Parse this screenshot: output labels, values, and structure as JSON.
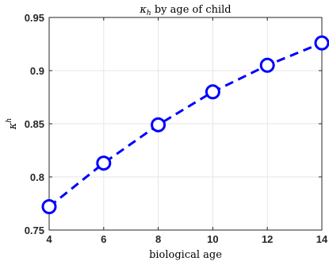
{
  "chart_data": {
    "type": "line",
    "title": {
      "symbol": "κ",
      "subscript": "h",
      "rest": " by age of child"
    },
    "xlabel": "biological age",
    "ylabel": {
      "symbol": "κ",
      "superscript": "h"
    },
    "xlim": [
      4,
      14
    ],
    "ylim": [
      0.75,
      0.95
    ],
    "xticks": [
      4,
      6,
      8,
      10,
      12,
      14
    ],
    "xtick_labels": [
      "4",
      "6",
      "8",
      "10",
      "12",
      "14"
    ],
    "yticks": [
      0.75,
      0.8,
      0.85,
      0.9,
      0.95
    ],
    "ytick_labels": [
      "0.75",
      "0.8",
      "0.85",
      "0.9",
      "0.95"
    ],
    "grid": true,
    "series": [
      {
        "x": [
          4,
          6,
          8,
          10,
          12,
          14
        ],
        "y": [
          0.772,
          0.813,
          0.849,
          0.88,
          0.905,
          0.926
        ],
        "color": "#0000ff",
        "line_style": "dashed",
        "marker": "circle"
      }
    ]
  }
}
